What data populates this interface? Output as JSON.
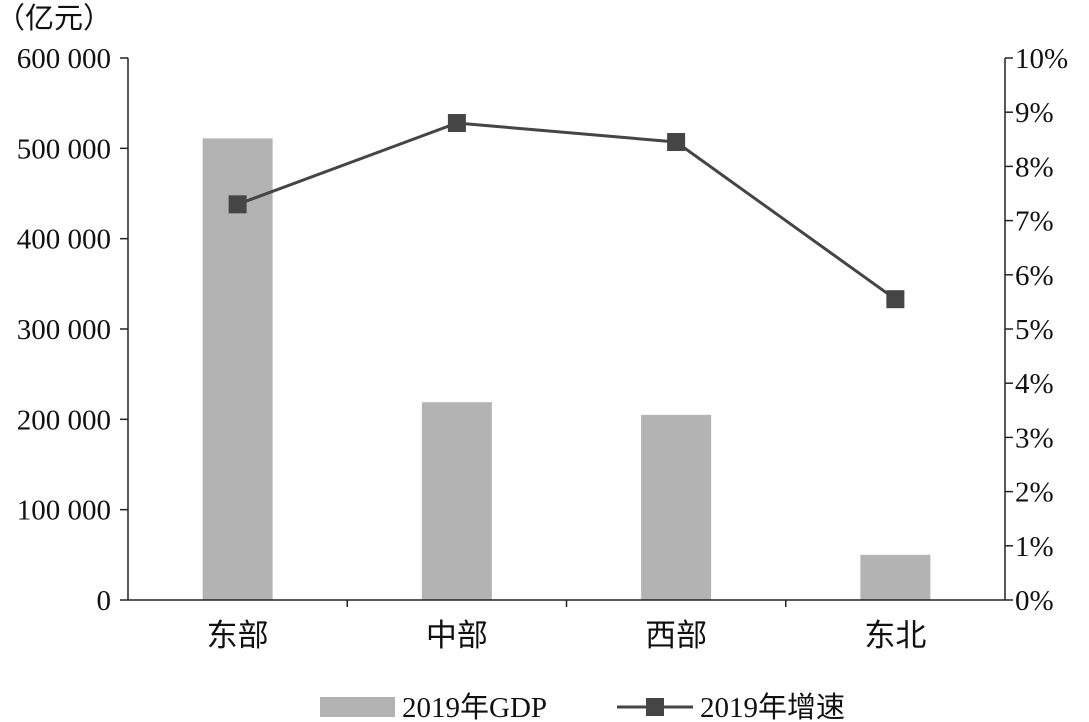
{
  "chart_data": {
    "type": "bar",
    "categories": [
      "东部",
      "中部",
      "西部",
      "东北"
    ],
    "series": [
      {
        "name": "2019年GDP",
        "type": "bar",
        "axis": "left",
        "color": "#b3b3b3",
        "values": [
          511000,
          219000,
          205000,
          50000
        ]
      },
      {
        "name": "2019年增速",
        "type": "line",
        "axis": "right",
        "color": "#454545",
        "marker": "square",
        "values": [
          7.3,
          8.8,
          8.45,
          5.55
        ]
      }
    ],
    "y_left": {
      "unit_label": "（亿元）",
      "range": [
        0,
        600000
      ],
      "tick_labels": [
        "0",
        "100 000",
        "200 000",
        "300 000",
        "400 000",
        "500 000",
        "600 000"
      ]
    },
    "y_right": {
      "range": [
        0,
        10
      ],
      "tick_labels": [
        "0%",
        "1%",
        "2%",
        "3%",
        "4%",
        "5%",
        "6%",
        "7%",
        "8%",
        "9%",
        "10%"
      ]
    },
    "grid": false,
    "legend_position": "bottom"
  }
}
